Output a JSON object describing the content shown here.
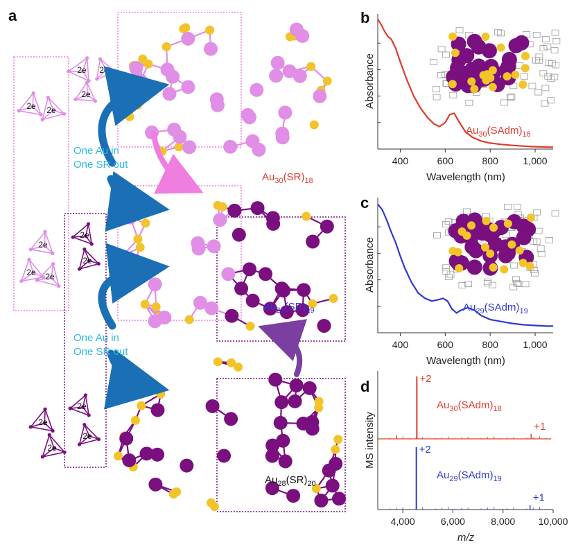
{
  "panels": {
    "a": "a",
    "b": "b",
    "c": "c",
    "d": "d"
  },
  "panel_a": {
    "electron_label": "2e",
    "transform_top": [
      "One Au in",
      "One SR out"
    ],
    "transform_bottom": [
      "One Au in",
      "One SR out"
    ],
    "clusters": {
      "au30": {
        "base": "Au",
        "sub1": "30",
        "mid": "(SR)",
        "sub2": "18"
      },
      "au29": {
        "base": "Au",
        "sub1": "29",
        "mid": "(SR)",
        "sub2": "19"
      },
      "au28": {
        "base": "Au",
        "sub1": "28",
        "mid": "(SR)",
        "sub2": "20"
      }
    },
    "colors": {
      "light_au": "#e08ee6",
      "dark_au": "#7a0f80",
      "sulfur": "#f2c42a",
      "arrow_blue": "#1a6fb5",
      "arrow_pink": "#f07ee0",
      "arrow_purple": "#7a3fa0",
      "cyan": "#2cb8e0"
    }
  },
  "chart_data": [
    {
      "panel": "b",
      "type": "line",
      "xlabel": "Wavelength (nm)",
      "ylabel": "Absorbance",
      "xlim": [
        300,
        1080
      ],
      "ylim": [
        0,
        1
      ],
      "xticks": [
        400,
        600,
        800,
        1000
      ],
      "xtick_labels": [
        "400",
        "600",
        "800",
        "1,000"
      ],
      "series": [
        {
          "name": "Au30(SAdm)18",
          "label": {
            "base": "Au",
            "sub1": "30",
            "mid": "(SAdm)",
            "sub2": "18"
          },
          "color": "#e03a2c",
          "x": [
            300,
            315,
            330,
            345,
            360,
            380,
            400,
            430,
            460,
            490,
            520,
            550,
            575,
            600,
            620,
            640,
            660,
            690,
            720,
            760,
            800,
            850,
            900,
            950,
            1000,
            1050,
            1080
          ],
          "y": [
            0.98,
            0.94,
            0.89,
            0.85,
            0.83,
            0.76,
            0.66,
            0.52,
            0.4,
            0.31,
            0.24,
            0.19,
            0.17,
            0.2,
            0.26,
            0.27,
            0.21,
            0.13,
            0.09,
            0.06,
            0.045,
            0.035,
            0.028,
            0.022,
            0.018,
            0.015,
            0.014
          ]
        }
      ]
    },
    {
      "panel": "c",
      "type": "line",
      "xlabel": "Wavelength (nm)",
      "ylabel": "Absorbance",
      "xlim": [
        300,
        1080
      ],
      "ylim": [
        0,
        1
      ],
      "xticks": [
        400,
        600,
        800,
        1000
      ],
      "xtick_labels": [
        "400",
        "600",
        "800",
        "1,000"
      ],
      "series": [
        {
          "name": "Au29(SAdm)19",
          "label": {
            "base": "Au",
            "sub1": "29",
            "mid": "(SAdm)",
            "sub2": "19"
          },
          "color": "#2e3ad0",
          "x": [
            300,
            320,
            340,
            360,
            380,
            400,
            420,
            450,
            480,
            510,
            540,
            570,
            590,
            610,
            630,
            650,
            670,
            700,
            730,
            760,
            800,
            850,
            900,
            950,
            1000,
            1050,
            1080
          ],
          "y": [
            0.97,
            0.93,
            0.85,
            0.76,
            0.68,
            0.58,
            0.49,
            0.38,
            0.3,
            0.26,
            0.24,
            0.25,
            0.26,
            0.24,
            0.18,
            0.15,
            0.17,
            0.19,
            0.17,
            0.13,
            0.1,
            0.085,
            0.07,
            0.06,
            0.055,
            0.05,
            0.05
          ]
        }
      ]
    },
    {
      "panel": "d",
      "type": "line",
      "xlabel": "m/z",
      "ylabel": "MS intensity",
      "xlim": [
        3000,
        10000
      ],
      "ylim": [
        0,
        1
      ],
      "xticks": [
        4000,
        6000,
        8000,
        10000
      ],
      "xtick_labels": [
        "4,000",
        "6,000",
        "8,000",
        "10,000"
      ],
      "series": [
        {
          "name": "Au30(SAdm)18",
          "label": {
            "base": "Au",
            "sub1": "30",
            "mid": "(SAdm)",
            "sub2": "18"
          },
          "color": "#e03a2c",
          "peaks": [
            {
              "x": 4560,
              "y": 1.0,
              "label": "+2"
            },
            {
              "x": 3750,
              "y": 0.06,
              "label": ""
            },
            {
              "x": 9120,
              "y": 0.08,
              "label": "+1"
            }
          ]
        },
        {
          "name": "Au29(SAdm)19",
          "label": {
            "base": "Au",
            "sub1": "29",
            "mid": "(SAdm)",
            "sub2": "19"
          },
          "color": "#2e3ad0",
          "peaks": [
            {
              "x": 4540,
              "y": 1.0,
              "label": "+2"
            },
            {
              "x": 9080,
              "y": 0.07,
              "label": "+1"
            }
          ]
        }
      ]
    }
  ]
}
